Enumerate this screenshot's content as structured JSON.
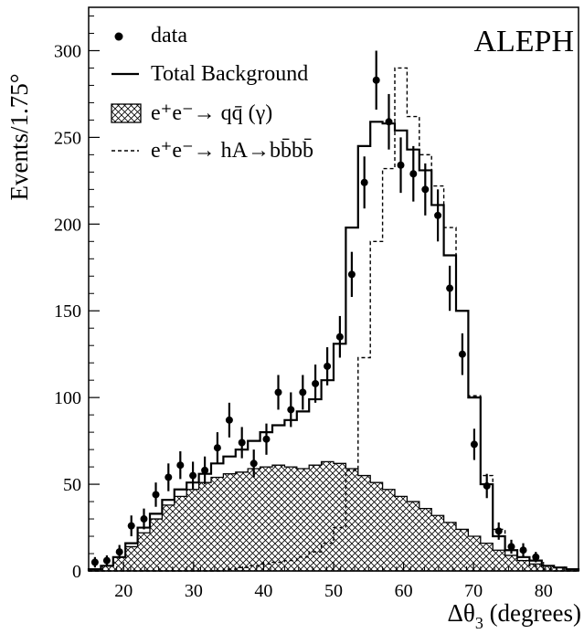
{
  "chart_data": {
    "type": "histogram",
    "experiment_label": "ALEPH",
    "xlabel_main": "Δθ",
    "xlabel_sub": "3",
    "xlabel_suffix": " (degrees)",
    "ylabel": "Events/1.75°",
    "xlim": [
      15,
      85
    ],
    "ylim": [
      0,
      325
    ],
    "bin_width": 1.75,
    "x_ticks": [
      20,
      30,
      40,
      50,
      60,
      70,
      80
    ],
    "y_ticks": [
      0,
      50,
      100,
      150,
      200,
      250,
      300
    ],
    "legend": [
      {
        "style": "marker",
        "prefix": "",
        "label": "data"
      },
      {
        "style": "solid",
        "prefix": "",
        "label": "Total Background"
      },
      {
        "style": "hatched",
        "prefix": "e⁺e⁻→ ",
        "label": "qq̄ (γ)"
      },
      {
        "style": "dashed",
        "prefix": "e⁺e⁻→ ",
        "label": "hA→bb̄bb̄"
      }
    ],
    "series": [
      {
        "name": "data",
        "x": [
          15.9,
          17.6,
          19.4,
          21.1,
          22.9,
          24.6,
          26.4,
          28.1,
          29.9,
          31.6,
          33.4,
          35.1,
          36.9,
          38.6,
          40.4,
          42.1,
          43.9,
          45.6,
          47.4,
          49.1,
          50.9,
          52.6,
          54.4,
          56.1,
          57.9,
          59.6,
          61.4,
          63.1,
          64.9,
          66.6,
          68.4,
          70.1,
          71.9,
          73.6,
          75.4,
          77.1,
          78.9
        ],
        "y": [
          5,
          6,
          11,
          26,
          30,
          44,
          54,
          61,
          55,
          58,
          71,
          87,
          74,
          62,
          76,
          103,
          93,
          103,
          108,
          118,
          135,
          171,
          224,
          283,
          259,
          234,
          229,
          220,
          205,
          163,
          125,
          73,
          49,
          23,
          14,
          12,
          8
        ],
        "err": [
          3,
          3,
          4,
          6,
          6,
          7,
          8,
          8,
          8,
          8,
          9,
          10,
          9,
          8,
          9,
          10,
          10,
          10,
          11,
          11,
          12,
          13,
          15,
          17,
          16,
          16,
          16,
          15,
          15,
          13,
          12,
          9,
          7,
          5,
          4,
          4,
          3
        ]
      },
      {
        "name": "Total Background",
        "bin_edges": [
          15,
          16.75,
          18.5,
          20.25,
          22,
          23.75,
          25.5,
          27.25,
          29,
          30.75,
          32.5,
          34.25,
          36,
          37.75,
          39.5,
          41.25,
          43,
          44.75,
          46.5,
          48.25,
          50,
          51.75,
          53.5,
          55.25,
          57,
          58.75,
          60.5,
          62.25,
          64,
          65.75,
          67.5,
          69.25,
          71,
          72.75,
          74.5,
          76.25,
          78,
          79.75,
          81.5,
          83.25,
          85
        ],
        "values": [
          1,
          3,
          8,
          16,
          25,
          33,
          41,
          47,
          51,
          56,
          62,
          66,
          70,
          75,
          80,
          84,
          87,
          92,
          99,
          110,
          131,
          198,
          245,
          259,
          258,
          254,
          243,
          231,
          211,
          182,
          150,
          100,
          50,
          20,
          12,
          8,
          6,
          3,
          2,
          1
        ]
      },
      {
        "name": "qq̄ (γ)",
        "bin_edges": [
          15,
          16.75,
          18.5,
          20.25,
          22,
          23.75,
          25.5,
          27.25,
          29,
          30.75,
          32.5,
          34.25,
          36,
          37.75,
          39.5,
          41.25,
          43,
          44.75,
          46.5,
          48.25,
          50,
          51.75,
          53.5,
          55.25,
          57,
          58.75,
          60.5,
          62.25,
          64,
          65.75,
          67.5,
          69.25,
          71,
          72.75,
          74.5,
          76.25,
          78,
          79.75,
          81.5,
          83.25,
          85
        ],
        "values": [
          1,
          3,
          8,
          14,
          22,
          30,
          38,
          43,
          47,
          51,
          54,
          56,
          57,
          59,
          60,
          61,
          60,
          59,
          61,
          63,
          62,
          59,
          55,
          51,
          47,
          43,
          40,
          36,
          32,
          28,
          24,
          20,
          16,
          12,
          9,
          6,
          4,
          3,
          2,
          1
        ]
      },
      {
        "name": "hA→bb̄bb̄",
        "bin_edges": [
          15,
          16.75,
          18.5,
          20.25,
          22,
          23.75,
          25.5,
          27.25,
          29,
          30.75,
          32.5,
          34.25,
          36,
          37.75,
          39.5,
          41.25,
          43,
          44.75,
          46.5,
          48.25,
          50,
          51.75,
          53.5,
          55.25,
          57,
          58.75,
          60.5,
          62.25,
          64,
          65.75,
          67.5,
          69.25,
          71,
          72.75,
          74.5,
          76.25,
          78,
          79.75,
          81.5,
          83.25,
          85
        ],
        "values": [
          0,
          0,
          0,
          0,
          0,
          0,
          0,
          0,
          0,
          0,
          0,
          1,
          2,
          3,
          4,
          5,
          6,
          8,
          11,
          16,
          25,
          58,
          123,
          190,
          232,
          290,
          262,
          240,
          222,
          198,
          150,
          101,
          55,
          24,
          12,
          6,
          3,
          1,
          0,
          0
        ]
      }
    ]
  }
}
